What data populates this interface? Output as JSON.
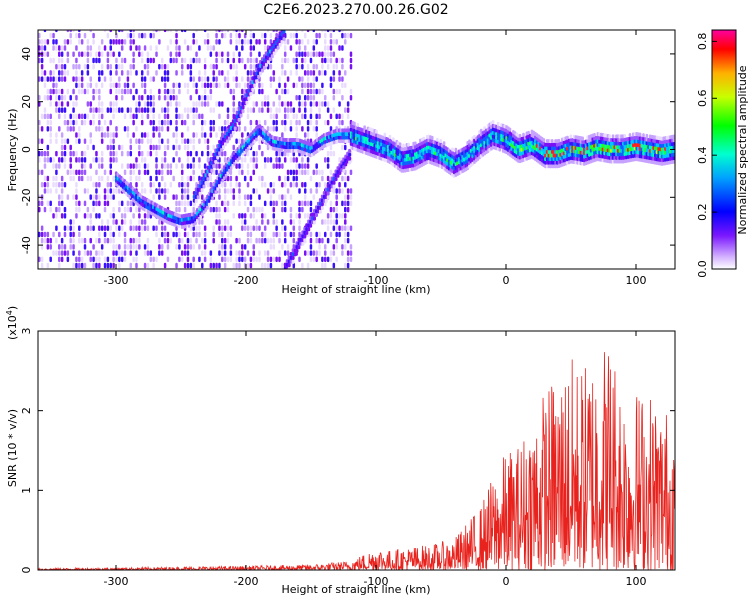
{
  "title": "C2E6.2023.270.00.26.G02",
  "colors": {
    "snr_line": "#e8221d",
    "axis": "#000000",
    "background": "#ffffff"
  },
  "chart_data": [
    {
      "type": "heatmap",
      "xlabel": "Height of straight line (km)",
      "ylabel": "Frequency (Hz)",
      "xlim": [
        -360,
        130
      ],
      "ylim": [
        -50,
        50
      ],
      "xticks": [
        -300,
        -200,
        -100,
        0,
        100
      ],
      "yticks": [
        -40,
        -20,
        0,
        20,
        40
      ],
      "colorbar": {
        "label": "Normalized spectral amplitude",
        "range": [
          0.0,
          0.84
        ],
        "ticks": [
          "0.0",
          "0.2",
          "0.4",
          "0.6",
          "0.8"
        ],
        "colormap": "rainbow (white-violet-blue-cyan-green-yellow-red-magenta)"
      },
      "ridge_track": {
        "x": [
          -300,
          -280,
          -260,
          -250,
          -240,
          -230,
          -220,
          -210,
          -200,
          -190,
          -180,
          -170,
          -160,
          -150,
          -140,
          -130,
          -120,
          -110,
          -100,
          -90,
          -80,
          -70,
          -60,
          -50,
          -40,
          -30,
          -20,
          -10,
          0,
          10,
          20,
          30,
          40,
          50,
          60,
          70,
          80,
          90,
          100,
          110,
          120,
          130
        ],
        "y": [
          -12,
          -22,
          -28,
          -30,
          -29,
          -22,
          -12,
          -4,
          2,
          8,
          3,
          2,
          2,
          0,
          4,
          6,
          6,
          4,
          2,
          0,
          -4,
          -3,
          0,
          -2,
          -6,
          -3,
          2,
          6,
          4,
          0,
          2,
          -2,
          -2,
          0,
          -1,
          1,
          0,
          0,
          1,
          0,
          -1,
          0
        ]
      },
      "secondary_track": {
        "x": [
          -240,
          -230,
          -220,
          -210,
          -200,
          -190,
          -180,
          -170
        ],
        "y": [
          -20,
          -10,
          2,
          10,
          22,
          34,
          42,
          50
        ]
      },
      "descending_track": {
        "x": [
          -170,
          -160,
          -150,
          -140,
          -130,
          -120
        ],
        "y": [
          -50,
          -40,
          -30,
          -20,
          -10,
          -2
        ]
      },
      "noisy_region_x": [
        -360,
        -120
      ]
    },
    {
      "type": "line",
      "xlabel": "Height of straight line (km)",
      "ylabel": "SNR (10 * v/v)",
      "multiplier": "(x10",
      "multiplier_exp": "4",
      "multiplier_close": ")",
      "xlim": [
        -360,
        130
      ],
      "ylim": [
        0,
        3
      ],
      "xticks": [
        -300,
        -200,
        -100,
        0,
        100
      ],
      "yticks": [
        0,
        1,
        2,
        3
      ],
      "envelope": {
        "x": [
          -360,
          -300,
          -250,
          -200,
          -150,
          -130,
          -120,
          -110,
          -100,
          -90,
          -80,
          -70,
          -60,
          -50,
          -40,
          -30,
          -20,
          -10,
          0,
          10,
          20,
          30,
          40,
          50,
          60,
          70,
          80,
          90,
          100,
          110,
          120,
          130
        ],
        "y": [
          0.02,
          0.03,
          0.04,
          0.05,
          0.07,
          0.1,
          0.12,
          0.2,
          0.3,
          0.25,
          0.28,
          0.3,
          0.32,
          0.35,
          0.4,
          0.6,
          0.8,
          1.2,
          1.5,
          1.6,
          2.0,
          2.3,
          2.5,
          2.7,
          2.6,
          2.9,
          3.0,
          2.4,
          2.3,
          2.3,
          2.1,
          2.0
        ]
      }
    }
  ]
}
